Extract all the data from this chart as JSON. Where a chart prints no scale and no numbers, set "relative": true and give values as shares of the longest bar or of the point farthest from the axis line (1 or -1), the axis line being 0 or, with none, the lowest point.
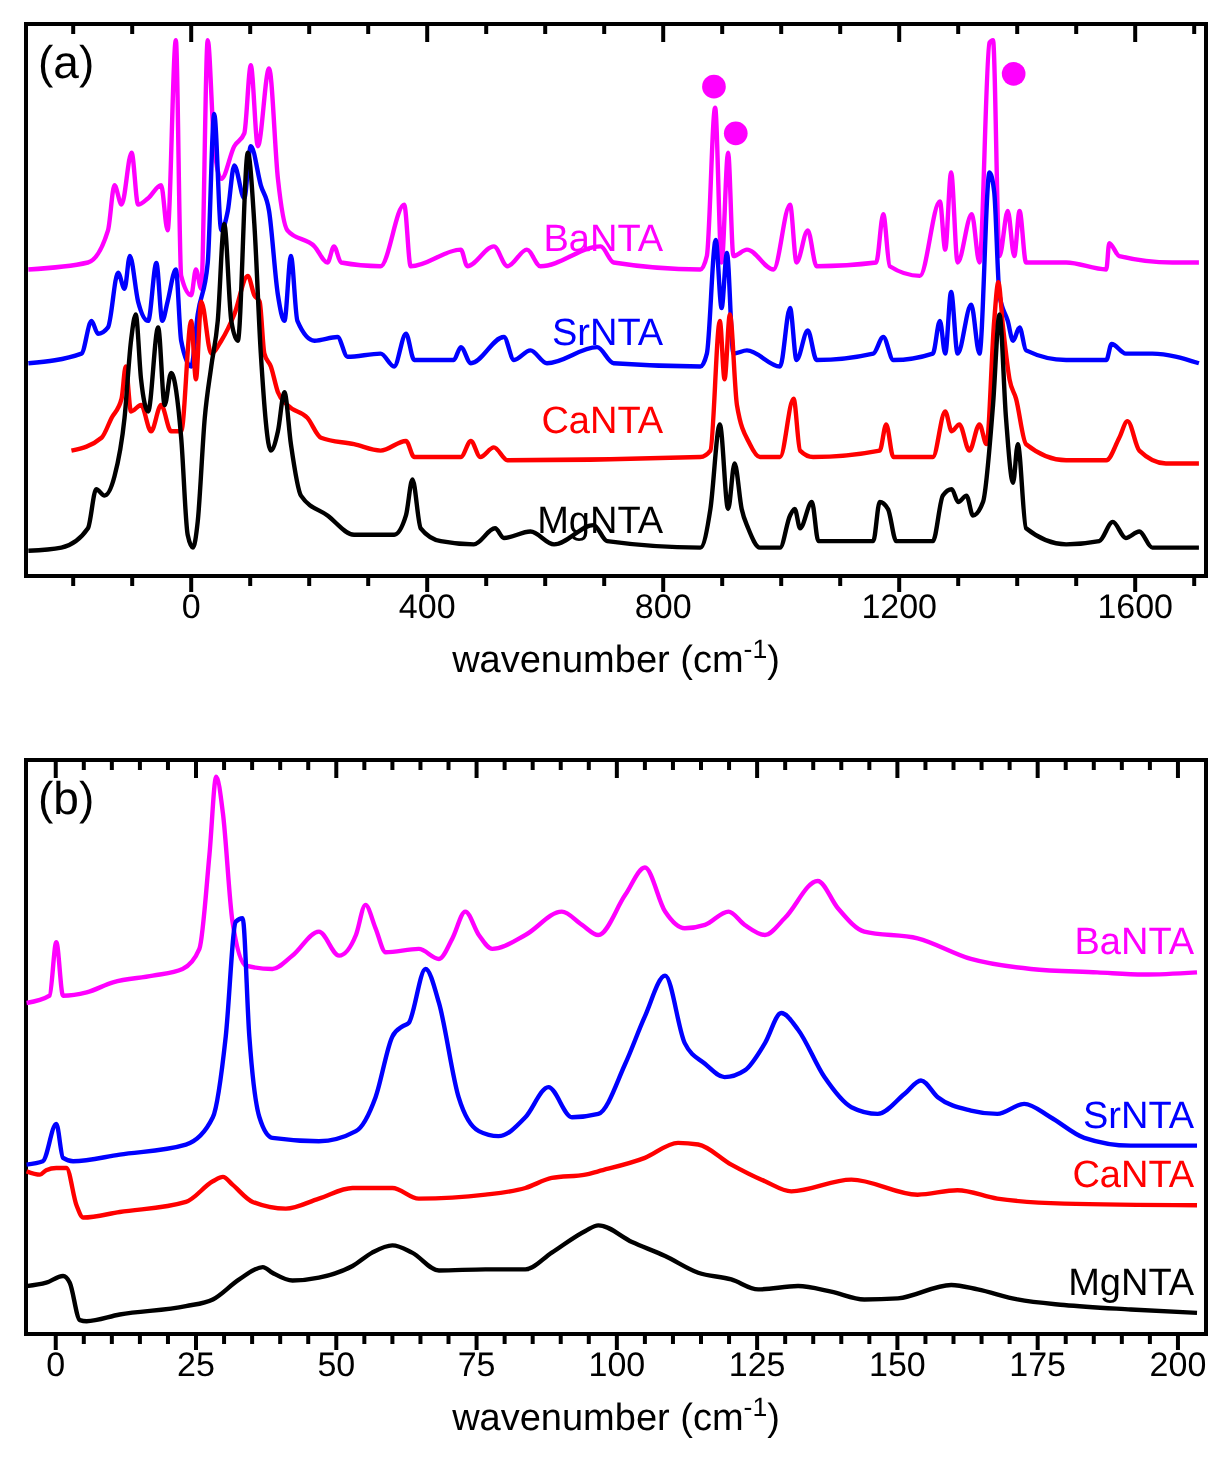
{
  "chart_data": [
    {
      "type": "line",
      "title": "(a)",
      "xlabel": "wavenumber (cm$^{-1}$)",
      "relative": true,
      "xlim": [
        -280,
        1720
      ],
      "xticks": [
        {
          "value": -200,
          "label": null
        },
        {
          "value": -100,
          "label": null
        },
        0,
        {
          "value": 100,
          "label": null
        },
        {
          "value": 200,
          "label": null
        },
        {
          "value": 300,
          "label": null
        },
        400,
        {
          "value": 500,
          "label": null
        },
        {
          "value": 600,
          "label": null
        },
        {
          "value": 700,
          "label": null
        },
        800,
        {
          "value": 900,
          "label": null
        },
        {
          "value": 1000,
          "label": null
        },
        {
          "value": 1100,
          "label": null
        },
        1200,
        {
          "value": 1300,
          "label": null
        },
        {
          "value": 1400,
          "label": null
        },
        {
          "value": 1500,
          "label": null
        },
        1600,
        {
          "value": 1700,
          "label": null
        }
      ],
      "series": [
        {
          "name": "BaNTA",
          "color": "#ff00ff",
          "x": [
            -276,
            -175,
            -141,
            -130,
            -118,
            -101,
            -90,
            -73,
            -51,
            -40,
            -26,
            -17,
            0,
            8,
            17,
            28,
            39,
            51,
            73,
            90,
            101,
            113,
            132,
            147,
            163,
            209,
            231,
            242,
            254,
            321,
            361,
            372,
            457,
            468,
            513,
            536,
            569,
            592,
            694,
            716,
            863,
            874,
            888,
            899,
            910,
            919,
            942,
            987,
            1015,
            1026,
            1045,
            1060,
            1161,
            1173,
            1184,
            1235,
            1269,
            1278,
            1288,
            1299,
            1323,
            1336,
            1353,
            1359,
            1370,
            1384,
            1395,
            1404,
            1415,
            1483,
            1551,
            1556,
            1573,
            1663,
            1708
          ],
          "values": [
            0.572,
            0.585,
            0.645,
            0.729,
            0.693,
            0.79,
            0.693,
            0.705,
            0.729,
            0.645,
            1,
            0.56,
            0.524,
            0.572,
            0.536,
            1,
            0.802,
            0.741,
            0.802,
            0.826,
            0.953,
            0.802,
            0.947,
            0.741,
            0.645,
            0.615,
            0.585,
            0.615,
            0.585,
            0.578,
            0.693,
            0.578,
            0.609,
            0.578,
            0.615,
            0.578,
            0.609,
            0.578,
            0.615,
            0.585,
            0.572,
            0.597,
            0.874,
            0.585,
            0.79,
            0.597,
            0.609,
            0.572,
            0.693,
            0.585,
            0.645,
            0.578,
            0.585,
            0.675,
            0.578,
            0.56,
            0.699,
            0.609,
            0.753,
            0.585,
            0.675,
            0.585,
            0.995,
            1,
            0.597,
            0.681,
            0.597,
            0.681,
            0.585,
            0.585,
            0.572,
            0.621,
            0.597,
            0.585,
            0.585
          ]
        },
        {
          "name": "SrNTA",
          "color": "#0000ff",
          "x": [
            -276,
            -186,
            -169,
            -158,
            -141,
            -124,
            -113,
            -104,
            -90,
            -73,
            -59,
            -49,
            -40,
            -26,
            -17,
            0,
            11,
            28,
            39,
            51,
            62,
            73,
            90,
            101,
            118,
            132,
            147,
            158,
            169,
            180,
            209,
            248,
            265,
            321,
            344,
            364,
            378,
            445,
            457,
            474,
            530,
            547,
            575,
            603,
            688,
            716,
            863,
            874,
            889,
            899,
            908,
            919,
            942,
            998,
            1015,
            1026,
            1045,
            1060,
            1156,
            1173,
            1190,
            1257,
            1269,
            1278,
            1288,
            1299,
            1322,
            1336,
            1353,
            1361,
            1370,
            1384,
            1393,
            1404,
            1415,
            1483,
            1551,
            1560,
            1584,
            1629,
            1708
          ],
          "values": [
            0.397,
            0.415,
            0.476,
            0.452,
            0.464,
            0.566,
            0.536,
            0.597,
            0.512,
            0.476,
            0.584,
            0.476,
            0.512,
            0.572,
            0.439,
            0.391,
            0.488,
            0.584,
            0.862,
            0.645,
            0.681,
            0.766,
            0.705,
            0.802,
            0.729,
            0.681,
            0.524,
            0.476,
            0.597,
            0.476,
            0.439,
            0.446,
            0.409,
            0.415,
            0.391,
            0.452,
            0.403,
            0.403,
            0.427,
            0.397,
            0.446,
            0.403,
            0.421,
            0.397,
            0.427,
            0.397,
            0.391,
            0.415,
            0.627,
            0.5,
            0.603,
            0.415,
            0.421,
            0.391,
            0.5,
            0.403,
            0.458,
            0.403,
            0.415,
            0.446,
            0.403,
            0.415,
            0.476,
            0.415,
            0.53,
            0.415,
            0.506,
            0.415,
            0.753,
            0.717,
            0.524,
            0.476,
            0.439,
            0.464,
            0.421,
            0.403,
            0.403,
            0.433,
            0.415,
            0.415,
            0.397
          ]
        },
        {
          "name": "CaNTA",
          "color": "#ff0000",
          "x": [
            -203,
            -152,
            -135,
            -118,
            -111,
            -102,
            -85,
            -68,
            -51,
            -34,
            -17,
            0,
            8,
            17,
            34,
            51,
            73,
            96,
            107,
            116,
            124,
            135,
            147,
            163,
            197,
            220,
            276,
            321,
            364,
            378,
            457,
            474,
            490,
            513,
            536,
            863,
            880,
            896,
            904,
            913,
            925,
            947,
            964,
            998,
            1021,
            1032,
            1054,
            1167,
            1178,
            1190,
            1257,
            1278,
            1289,
            1302,
            1319,
            1336,
            1348,
            1361,
            1368,
            1376,
            1387,
            1398,
            1415,
            1483,
            1551,
            1573,
            1587,
            1607,
            1652,
            1708
          ],
          "values": [
            0.234,
            0.258,
            0.295,
            0.331,
            0.391,
            0.307,
            0.319,
            0.27,
            0.319,
            0.27,
            0.27,
            0.476,
            0.367,
            0.512,
            0.415,
            0.439,
            0.488,
            0.56,
            0.524,
            0.512,
            0.415,
            0.391,
            0.343,
            0.319,
            0.295,
            0.258,
            0.246,
            0.234,
            0.252,
            0.222,
            0.222,
            0.252,
            0.222,
            0.24,
            0.216,
            0.222,
            0.234,
            0.476,
            0.367,
            0.488,
            0.319,
            0.246,
            0.222,
            0.222,
            0.331,
            0.234,
            0.222,
            0.234,
            0.283,
            0.222,
            0.222,
            0.307,
            0.27,
            0.283,
            0.234,
            0.283,
            0.246,
            0.476,
            0.548,
            0.464,
            0.367,
            0.331,
            0.246,
            0.216,
            0.216,
            0.258,
            0.289,
            0.234,
            0.21,
            0.21
          ]
        },
        {
          "name": "MgNTA",
          "color": "#000000",
          "x": [
            -276,
            -220,
            -175,
            -161,
            -147,
            -130,
            -113,
            -102,
            -94,
            -85,
            -73,
            -56,
            -45,
            -34,
            -17,
            -6,
            3,
            11,
            23,
            34,
            45,
            56,
            68,
            79,
            96,
            107,
            118,
            135,
            147,
            158,
            169,
            186,
            231,
            276,
            344,
            364,
            375,
            389,
            423,
            479,
            515,
            530,
            575,
            615,
            682,
            705,
            863,
            880,
            896,
            910,
            921,
            933,
            944,
            964,
            998,
            1015,
            1023,
            1032,
            1052,
            1063,
            1156,
            1167,
            1181,
            1195,
            1257,
            1274,
            1289,
            1300,
            1314,
            1325,
            1342,
            1359,
            1370,
            1381,
            1393,
            1401,
            1415,
            1483,
            1539,
            1562,
            1584,
            1607,
            1629,
            1708
          ],
          "values": [
            0.047,
            0.053,
            0.089,
            0.162,
            0.15,
            0.186,
            0.295,
            0.439,
            0.488,
            0.367,
            0.307,
            0.464,
            0.319,
            0.379,
            0.258,
            0.077,
            0.053,
            0.101,
            0.295,
            0.391,
            0.476,
            0.657,
            0.476,
            0.439,
            0.79,
            0.657,
            0.415,
            0.234,
            0.27,
            0.343,
            0.246,
            0.15,
            0.113,
            0.077,
            0.077,
            0.113,
            0.18,
            0.089,
            0.065,
            0.059,
            0.089,
            0.071,
            0.083,
            0.059,
            0.095,
            0.065,
            0.053,
            0.125,
            0.283,
            0.125,
            0.21,
            0.125,
            0.089,
            0.053,
            0.053,
            0.113,
            0.125,
            0.089,
            0.138,
            0.065,
            0.065,
            0.138,
            0.125,
            0.065,
            0.065,
            0.15,
            0.162,
            0.138,
            0.15,
            0.113,
            0.138,
            0.319,
            0.488,
            0.295,
            0.174,
            0.246,
            0.089,
            0.059,
            0.065,
            0.101,
            0.071,
            0.083,
            0.053,
            0.053
          ]
        },
        {
          "type": "scatter",
          "marker": "circle",
          "color": "#ff00ff",
          "x": [
            886,
            923,
            1394
          ],
          "values": [
            0.913,
            0.826,
            0.937
          ]
        }
      ]
    },
    {
      "type": "line",
      "title": "(b)",
      "xlabel": "wavenumber (cm$^{-1}$)",
      "relative": true,
      "xlim": [
        -5.3,
        205
      ],
      "xticks": [
        0,
        {
          "value": 5,
          "label": null
        },
        {
          "value": 10,
          "label": null
        },
        {
          "value": 15,
          "label": null
        },
        {
          "value": 20,
          "label": null
        },
        25,
        {
          "value": 30,
          "label": null
        },
        {
          "value": 35,
          "label": null
        },
        {
          "value": 40,
          "label": null
        },
        {
          "value": 45,
          "label": null
        },
        50,
        {
          "value": 55,
          "label": null
        },
        {
          "value": 60,
          "label": null
        },
        {
          "value": 65,
          "label": null
        },
        {
          "value": 70,
          "label": null
        },
        75,
        {
          "value": 80,
          "label": null
        },
        {
          "value": 85,
          "label": null
        },
        {
          "value": 90,
          "label": null
        },
        {
          "value": 95,
          "label": null
        },
        100,
        {
          "value": 105,
          "label": null
        },
        {
          "value": 110,
          "label": null
        },
        {
          "value": 115,
          "label": null
        },
        {
          "value": 120,
          "label": null
        },
        125,
        {
          "value": 130,
          "label": null
        },
        {
          "value": 135,
          "label": null
        },
        {
          "value": 140,
          "label": null
        },
        {
          "value": 145,
          "label": null
        },
        150,
        {
          "value": 155,
          "label": null
        },
        {
          "value": 160,
          "label": null
        },
        {
          "value": 165,
          "label": null
        },
        {
          "value": 170,
          "label": null
        },
        175,
        {
          "value": 180,
          "label": null
        },
        {
          "value": 185,
          "label": null
        },
        {
          "value": 190,
          "label": null
        },
        {
          "value": 195,
          "label": null
        },
        200
      ],
      "series": [
        {
          "name": "BaNTA",
          "color": "#ff00ff",
          "x": [
            -5.2,
            -1.1,
            0.1,
            1.3,
            5.5,
            10.2,
            17.3,
            22.6,
            25.6,
            27.4,
            28.6,
            29.8,
            31.5,
            33.9,
            38.6,
            42.2,
            46.9,
            50.5,
            53.5,
            55.2,
            57,
            58.8,
            64.7,
            68.3,
            70.7,
            73,
            75.4,
            77.8,
            83.7,
            90.2,
            93.8,
            96.7,
            101.5,
            105,
            108.6,
            112.1,
            115.7,
            119.9,
            122.8,
            126.4,
            129.9,
            135.8,
            139.4,
            144.1,
            153.6,
            163.1,
            173.8,
            185.6,
            193.9,
            203.4
          ],
          "values": [
            0.594,
            0.607,
            0.703,
            0.607,
            0.613,
            0.631,
            0.643,
            0.655,
            0.691,
            0.861,
            1,
            0.934,
            0.74,
            0.661,
            0.655,
            0.679,
            0.722,
            0.679,
            0.716,
            0.77,
            0.728,
            0.685,
            0.691,
            0.673,
            0.71,
            0.758,
            0.716,
            0.691,
            0.716,
            0.758,
            0.734,
            0.716,
            0.788,
            0.837,
            0.758,
            0.728,
            0.734,
            0.758,
            0.734,
            0.716,
            0.746,
            0.813,
            0.764,
            0.722,
            0.71,
            0.673,
            0.655,
            0.649,
            0.645,
            0.649
          ]
        },
        {
          "name": "SrNTA",
          "color": "#0000ff",
          "x": [
            -5.2,
            -2.3,
            0.1,
            1.3,
            3.1,
            11.4,
            23.2,
            28,
            30.3,
            32.1,
            33.3,
            34.5,
            36.3,
            38.6,
            46.9,
            53.5,
            57,
            60,
            61.8,
            62.9,
            65.9,
            68.3,
            71.8,
            75.4,
            78.9,
            83.7,
            87.8,
            92,
            96.7,
            101.5,
            105,
            108.6,
            112.1,
            115.7,
            119.2,
            122.8,
            126.4,
            129.3,
            132.3,
            137,
            141.8,
            146.5,
            151.3,
            154.2,
            157.2,
            163.1,
            167.8,
            172.6,
            177.3,
            183.3,
            191.6,
            203.4
          ],
          "values": [
            0.304,
            0.31,
            0.377,
            0.316,
            0.31,
            0.322,
            0.34,
            0.389,
            0.534,
            0.74,
            0.746,
            0.534,
            0.389,
            0.352,
            0.346,
            0.364,
            0.425,
            0.534,
            0.552,
            0.558,
            0.655,
            0.594,
            0.425,
            0.364,
            0.355,
            0.389,
            0.443,
            0.389,
            0.395,
            0.485,
            0.57,
            0.643,
            0.522,
            0.485,
            0.461,
            0.473,
            0.522,
            0.576,
            0.546,
            0.461,
            0.407,
            0.395,
            0.431,
            0.455,
            0.425,
            0.401,
            0.395,
            0.413,
            0.389,
            0.352,
            0.338,
            0.338
          ]
        },
        {
          "name": "CaNTA",
          "color": "#ff0000",
          "x": [
            -5.2,
            -2.8,
            -1.7,
            0.1,
            1.9,
            3.7,
            4.9,
            11.4,
            23.2,
            28,
            29.8,
            31.5,
            35.1,
            41,
            46.9,
            52.9,
            60,
            64.7,
            76.6,
            83.7,
            88.4,
            94.4,
            96.7,
            105,
            110.9,
            114.5,
            120.4,
            126.4,
            131.1,
            141.8,
            153.6,
            160.7,
            167.8,
            179.7,
            203.4
          ],
          "values": [
            0.292,
            0.286,
            0.294,
            0.298,
            0.298,
            0.231,
            0.209,
            0.219,
            0.237,
            0.274,
            0.282,
            0.268,
            0.237,
            0.225,
            0.243,
            0.262,
            0.262,
            0.243,
            0.25,
            0.262,
            0.28,
            0.286,
            0.292,
            0.316,
            0.343,
            0.34,
            0.304,
            0.274,
            0.256,
            0.277,
            0.25,
            0.258,
            0.243,
            0.234,
            0.231
          ]
        },
        {
          "name": "MgNTA",
          "color": "#000000",
          "x": [
            -5.2,
            -1.7,
            1.3,
            2.5,
            4.3,
            5.5,
            11.4,
            23.2,
            28,
            32.7,
            36.9,
            38.6,
            42.2,
            46.9,
            52.9,
            56.4,
            60,
            63.5,
            68.3,
            76.6,
            83.7,
            88.4,
            94.4,
            96.7,
            102.7,
            108.6,
            114.5,
            120.4,
            125.2,
            132.3,
            138.2,
            144.1,
            150.1,
            159.6,
            164.3,
            171.4,
            179.7,
            191.6,
            203.4
          ],
          "values": [
            0.086,
            0.092,
            0.104,
            0.092,
            0.025,
            0.023,
            0.035,
            0.05,
            0.062,
            0.098,
            0.12,
            0.11,
            0.096,
            0.101,
            0.122,
            0.146,
            0.159,
            0.146,
            0.114,
            0.116,
            0.116,
            0.146,
            0.185,
            0.195,
            0.165,
            0.14,
            0.11,
            0.098,
            0.08,
            0.086,
            0.076,
            0.062,
            0.064,
            0.088,
            0.08,
            0.062,
            0.052,
            0.044,
            0.038
          ]
        }
      ]
    }
  ]
}
